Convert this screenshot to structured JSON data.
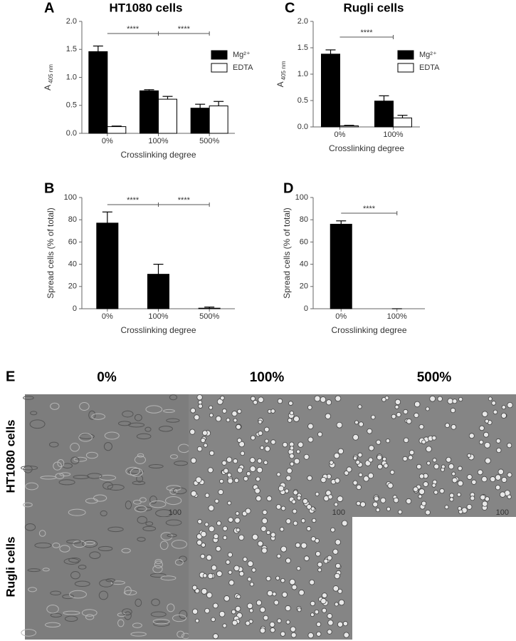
{
  "chart_data": [
    {
      "type": "bar",
      "panel": "A",
      "title": "HT1080 cells",
      "y_label": "A",
      "y_label_sub": "405 nm",
      "x_label": "Crosslinking degree",
      "categories": [
        "0%",
        "100%",
        "500%"
      ],
      "series": [
        {
          "name": "Mg²⁺",
          "color": "#000000",
          "values": [
            1.46,
            0.76,
            0.45
          ],
          "errors": [
            0.1,
            0.02,
            0.07
          ]
        },
        {
          "name": "EDTA",
          "color": "#ffffff",
          "values": [
            0.12,
            0.61,
            0.49
          ],
          "errors": [
            0.01,
            0.05,
            0.08
          ]
        }
      ],
      "ylim": [
        0,
        2
      ],
      "yticks": [
        {
          "value": 0,
          "label": "0.0"
        },
        0.5,
        {
          "value": 1,
          "label": "1.0"
        },
        1.5,
        {
          "value": 2,
          "label": "2.0"
        }
      ],
      "brackets": [
        {
          "label": "****",
          "between": [
            0,
            1
          ]
        },
        {
          "label": "****",
          "between": [
            1,
            2
          ]
        }
      ]
    },
    {
      "type": "bar",
      "panel": "B",
      "y_label": "Spread cells (% of total)",
      "x_label": "Crosslinking degree",
      "categories": [
        "0%",
        "100%",
        "500%"
      ],
      "color": "#000000",
      "values": [
        77,
        31,
        0.5
      ],
      "errors": [
        10,
        9,
        1
      ],
      "ylim": [
        0,
        100
      ],
      "yticks": [
        0,
        20,
        40,
        60,
        80,
        100
      ],
      "brackets": [
        {
          "label": "****",
          "between": [
            0,
            1
          ]
        },
        {
          "label": "****",
          "between": [
            1,
            2
          ]
        }
      ]
    },
    {
      "type": "bar",
      "panel": "C",
      "title": "Rugli cells",
      "y_label": "A",
      "y_label_sub": "405 nm",
      "x_label": "Crosslinking degree",
      "categories": [
        "0%",
        "100%"
      ],
      "series": [
        {
          "name": "Mg²⁺",
          "color": "#000000",
          "values": [
            1.38,
            0.49
          ],
          "errors": [
            0.08,
            0.1
          ]
        },
        {
          "name": "EDTA",
          "color": "#ffffff",
          "values": [
            0.02,
            0.17
          ],
          "errors": [
            0.01,
            0.05
          ]
        }
      ],
      "ylim": [
        0,
        2
      ],
      "yticks": [
        {
          "value": 0,
          "label": "0.0"
        },
        0.5,
        {
          "value": 1,
          "label": "1.0"
        },
        1.5,
        {
          "value": 2,
          "label": "2.0"
        }
      ],
      "brackets": [
        {
          "label": "****",
          "between": [
            0,
            1
          ]
        }
      ]
    },
    {
      "type": "bar",
      "panel": "D",
      "y_label": "Spread cells (% of total)",
      "x_label": "Crosslinking degree",
      "categories": [
        "0%",
        "100%"
      ],
      "color": "#000000",
      "values": [
        76,
        0
      ],
      "errors": [
        3,
        0
      ],
      "ylim": [
        0,
        100
      ],
      "yticks": [
        0,
        20,
        40,
        60,
        80,
        100
      ],
      "brackets": [
        {
          "label": "****",
          "between": [
            0,
            1
          ]
        }
      ]
    }
  ],
  "image_panel": {
    "panel": "E",
    "columns": [
      "0%",
      "100%",
      "500%"
    ],
    "rows": [
      "HT1080 cells",
      "Rugli cells"
    ],
    "scale_label": "100"
  }
}
